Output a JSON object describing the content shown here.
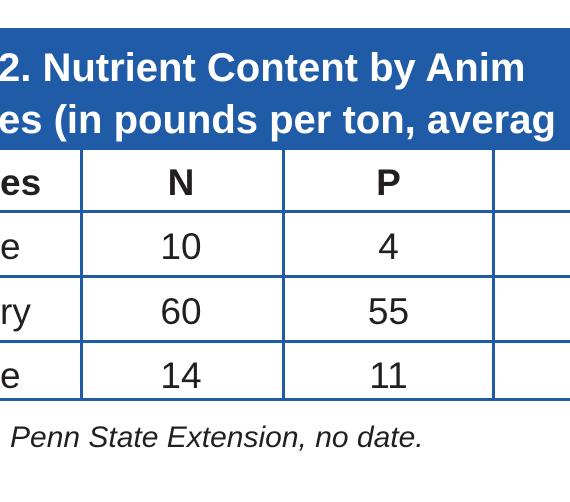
{
  "table": {
    "title_line_1": "2. Nutrient Content by Anim",
    "title_line_2": "es (in pounds per ton, averag",
    "columns": [
      "es",
      "N",
      "P"
    ],
    "rows": [
      [
        "e",
        "10",
        "4"
      ],
      [
        "ry",
        "60",
        "55"
      ],
      [
        "e",
        "14",
        "11"
      ]
    ],
    "footnote": "Penn State Extension, no date.",
    "colors": {
      "header_background": "#1f5ba6",
      "rule_color": "#1f5ba6",
      "text_color": "#231f20",
      "title_text_color": "#ffffff"
    }
  }
}
